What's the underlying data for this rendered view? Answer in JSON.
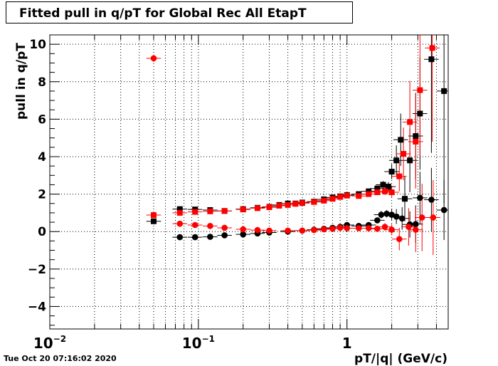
{
  "chart_data": {
    "type": "scatter",
    "title": "Fitted pull in q/pT for Global Rec All EtapT",
    "xlabel": "pT/|q| (GeV/c)",
    "ylabel": "pull in q/pT",
    "x_scale": "log",
    "xlim": [
      0.01,
      4.8
    ],
    "ylim": [
      -5.2,
      10.5
    ],
    "grid": true,
    "x_tick_labels": [
      {
        "pos": 0.01,
        "base": "10",
        "exp": "−2"
      },
      {
        "pos": 0.1,
        "base": "10",
        "exp": "−1"
      },
      {
        "pos": 1,
        "base": "1",
        "exp": ""
      }
    ],
    "y_ticks": [
      -4,
      -2,
      0,
      2,
      4,
      6,
      8,
      10
    ],
    "y_tick_labels": [
      "−4",
      "−2",
      "0",
      "2",
      "4",
      "6",
      "8",
      "10"
    ],
    "series": [
      {
        "color": "#000000",
        "marker": "square",
        "points": [
          [
            0.05,
            0.55,
            0.15
          ],
          [
            0.075,
            1.2,
            0.1
          ],
          [
            0.095,
            1.18,
            0.1
          ],
          [
            0.12,
            1.15,
            0.1
          ],
          [
            0.15,
            1.1,
            0.06
          ],
          [
            0.2,
            1.2,
            0.05
          ],
          [
            0.25,
            1.27,
            0.05
          ],
          [
            0.3,
            1.32,
            0.05
          ],
          [
            0.35,
            1.42,
            0.05
          ],
          [
            0.4,
            1.5,
            0.05
          ],
          [
            0.45,
            1.5,
            0.05
          ],
          [
            0.5,
            1.55,
            0.05
          ],
          [
            0.6,
            1.6,
            0.06
          ],
          [
            0.7,
            1.72,
            0.06
          ],
          [
            0.8,
            1.82,
            0.07
          ],
          [
            0.9,
            1.88,
            0.07
          ],
          [
            1.0,
            1.95,
            0.08
          ],
          [
            1.2,
            2.0,
            0.1
          ],
          [
            1.4,
            2.15,
            0.12
          ],
          [
            1.6,
            2.3,
            0.15
          ],
          [
            1.75,
            2.5,
            0.2
          ],
          [
            1.9,
            2.4,
            0.25
          ],
          [
            2.0,
            3.2,
            0.4
          ],
          [
            2.15,
            3.8,
            0.8
          ],
          [
            2.3,
            4.9,
            1.4
          ],
          [
            2.45,
            1.75,
            1.2
          ],
          [
            2.65,
            3.8,
            1.7
          ],
          [
            2.9,
            5.1,
            2.3
          ],
          [
            3.1,
            6.3,
            3.0
          ],
          [
            3.7,
            9.2,
            5.0
          ],
          [
            4.5,
            7.5,
            6.0
          ]
        ]
      },
      {
        "color": "#000000",
        "marker": "circle",
        "points": [
          [
            0.075,
            -0.3,
            0.1
          ],
          [
            0.095,
            -0.3,
            0.1
          ],
          [
            0.12,
            -0.28,
            0.1
          ],
          [
            0.15,
            -0.2,
            0.06
          ],
          [
            0.2,
            -0.15,
            0.05
          ],
          [
            0.25,
            -0.1,
            0.05
          ],
          [
            0.3,
            -0.05,
            0.05
          ],
          [
            0.4,
            0.0,
            0.05
          ],
          [
            0.5,
            0.05,
            0.05
          ],
          [
            0.6,
            0.1,
            0.05
          ],
          [
            0.7,
            0.15,
            0.06
          ],
          [
            0.8,
            0.2,
            0.07
          ],
          [
            0.9,
            0.25,
            0.08
          ],
          [
            1.0,
            0.35,
            0.1
          ],
          [
            1.2,
            0.3,
            0.1
          ],
          [
            1.4,
            0.35,
            0.12
          ],
          [
            1.6,
            0.6,
            0.15
          ],
          [
            1.7,
            0.9,
            0.2
          ],
          [
            1.85,
            0.95,
            0.2
          ],
          [
            2.0,
            0.9,
            0.3
          ],
          [
            2.15,
            0.8,
            0.4
          ],
          [
            2.35,
            0.7,
            0.6
          ],
          [
            2.65,
            0.38,
            0.7
          ],
          [
            2.9,
            0.4,
            1.0
          ],
          [
            3.1,
            1.8,
            1.4
          ],
          [
            3.7,
            1.7,
            1.7
          ],
          [
            4.5,
            1.15,
            1.6
          ]
        ]
      },
      {
        "color": "#ff0000",
        "marker": "square",
        "points": [
          [
            0.05,
            0.88,
            0.12
          ],
          [
            0.075,
            1.0,
            0.1
          ],
          [
            0.095,
            1.05,
            0.1
          ],
          [
            0.12,
            1.08,
            0.1
          ],
          [
            0.15,
            1.1,
            0.06
          ],
          [
            0.2,
            1.18,
            0.05
          ],
          [
            0.25,
            1.25,
            0.05
          ],
          [
            0.3,
            1.3,
            0.05
          ],
          [
            0.35,
            1.38,
            0.05
          ],
          [
            0.4,
            1.42,
            0.05
          ],
          [
            0.45,
            1.48,
            0.05
          ],
          [
            0.5,
            1.52,
            0.05
          ],
          [
            0.6,
            1.58,
            0.06
          ],
          [
            0.7,
            1.65,
            0.06
          ],
          [
            0.8,
            1.75,
            0.07
          ],
          [
            0.9,
            1.85,
            0.07
          ],
          [
            1.0,
            1.92,
            0.08
          ],
          [
            1.2,
            1.9,
            0.1
          ],
          [
            1.4,
            2.0,
            0.12
          ],
          [
            1.6,
            2.1,
            0.15
          ],
          [
            1.8,
            2.15,
            0.2
          ],
          [
            2.0,
            2.1,
            0.3
          ],
          [
            2.25,
            2.95,
            0.8
          ],
          [
            2.4,
            4.15,
            1.4
          ],
          [
            2.65,
            5.85,
            2.2
          ],
          [
            2.9,
            4.8,
            2.5
          ],
          [
            3.1,
            7.55,
            3.5
          ],
          [
            3.75,
            9.8,
            5.0
          ]
        ]
      },
      {
        "color": "#ff0000",
        "marker": "circle",
        "points": [
          [
            0.05,
            9.25,
            0.2
          ],
          [
            0.075,
            0.42,
            0.1
          ],
          [
            0.095,
            0.35,
            0.1
          ],
          [
            0.12,
            0.3,
            0.1
          ],
          [
            0.15,
            0.2,
            0.06
          ],
          [
            0.2,
            0.12,
            0.05
          ],
          [
            0.25,
            0.08,
            0.05
          ],
          [
            0.3,
            0.05,
            0.05
          ],
          [
            0.4,
            0.05,
            0.05
          ],
          [
            0.5,
            0.05,
            0.05
          ],
          [
            0.6,
            0.08,
            0.05
          ],
          [
            0.7,
            0.12,
            0.06
          ],
          [
            0.8,
            0.15,
            0.06
          ],
          [
            0.9,
            0.2,
            0.07
          ],
          [
            1.0,
            0.18,
            0.08
          ],
          [
            1.2,
            0.18,
            0.1
          ],
          [
            1.4,
            0.18,
            0.12
          ],
          [
            1.6,
            0.15,
            0.15
          ],
          [
            1.8,
            0.25,
            0.2
          ],
          [
            2.0,
            0.1,
            0.3
          ],
          [
            2.25,
            -0.4,
            0.6
          ],
          [
            2.6,
            0.25,
            1.0
          ],
          [
            2.9,
            0.1,
            1.2
          ],
          [
            3.2,
            0.75,
            1.8
          ],
          [
            3.8,
            0.75,
            2.0
          ]
        ]
      }
    ]
  },
  "footer": {
    "timestamp": "Tue Oct 20 07:16:02 2020"
  }
}
